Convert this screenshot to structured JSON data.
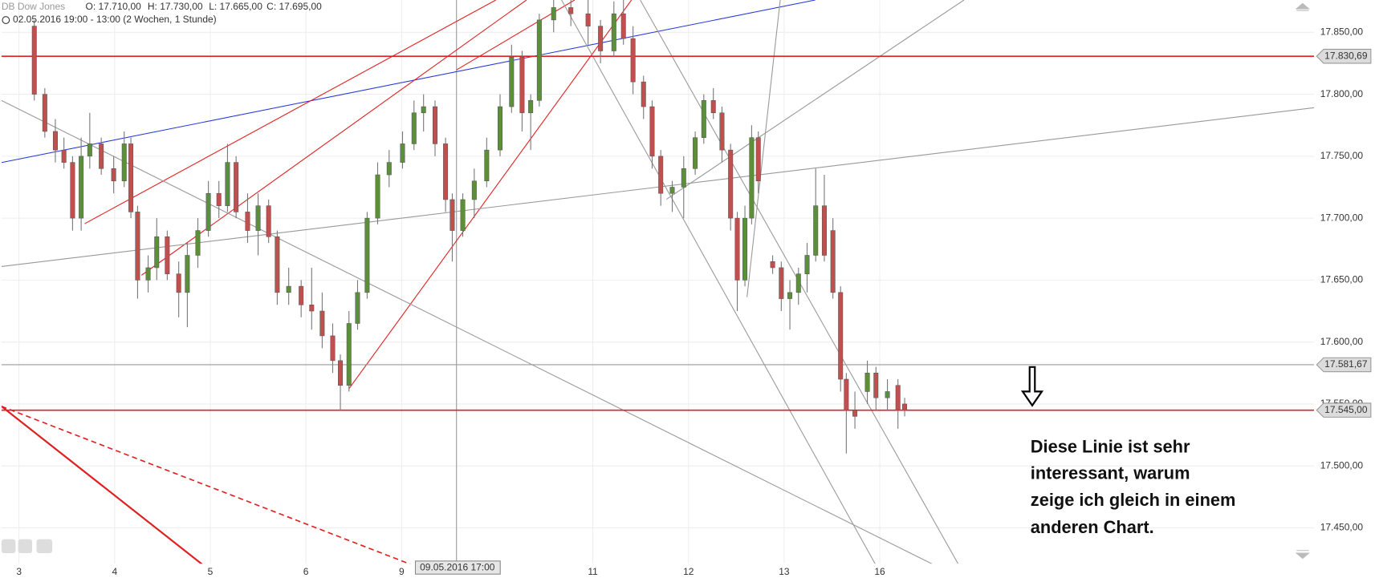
{
  "chart_data": {
    "type": "candlestick",
    "instrument": "DB Dow Jones",
    "ohlc_header": [
      "O: 17.710,00",
      "H: 17.730,00",
      "L: 17.665,00",
      "C: 17.695,00"
    ],
    "period": "02.05.2016 19:00 - 13:00 (2 Wochen, 1 Stunde)",
    "crosshair_label": "09.05.2016 17:00",
    "annotation": [
      "Diese Linie ist sehr",
      "interessant, warum",
      "zeige ich gleich in einem",
      "anderen Chart."
    ],
    "up_color": "#5b8f3a",
    "down_color": "#c0504d",
    "grid": true,
    "xlim": [
      -0.183,
      13.54
    ],
    "xticks": [
      {
        "value": 0,
        "label": "3"
      },
      {
        "value": 1,
        "label": "4"
      },
      {
        "value": 2,
        "label": "5"
      },
      {
        "value": 3,
        "label": "6"
      },
      {
        "value": 4,
        "label": "9"
      },
      {
        "value": 6,
        "label": "11"
      },
      {
        "value": 7,
        "label": "12"
      },
      {
        "value": 8,
        "label": "13"
      },
      {
        "value": 9,
        "label": "16"
      }
    ],
    "ylim": [
      17421.1,
      17876.1
    ],
    "yticks": [
      {
        "value": 17450,
        "label": "17.450,00"
      },
      {
        "value": 17500,
        "label": "17.500,00"
      },
      {
        "value": 17550,
        "label": "17.550,00"
      },
      {
        "value": 17600,
        "label": "17.600,00"
      },
      {
        "value": 17650,
        "label": "17.650,00"
      },
      {
        "value": 17700,
        "label": "17.700,00"
      },
      {
        "value": 17750,
        "label": "17.750,00"
      },
      {
        "value": 17800,
        "label": "17.800,00"
      },
      {
        "value": 17850,
        "label": "17.850,00"
      }
    ],
    "hlines": [
      {
        "value": 17830.69,
        "label": "17.830,69",
        "color": "#e02020"
      },
      {
        "value": 17581.67,
        "label": "17.581,67",
        "color": "#999999"
      },
      {
        "value": 17545,
        "label": "17.545,00",
        "color": "#e02020"
      }
    ],
    "x": [
      0.16,
      0.27,
      0.38,
      0.47,
      0.56,
      0.65,
      0.74,
      0.86,
      0.99,
      1.1,
      1.17,
      1.24,
      1.35,
      1.44,
      1.55,
      1.67,
      1.76,
      1.87,
      1.98,
      2.09,
      2.18,
      2.27,
      2.39,
      2.5,
      2.61,
      2.7,
      2.82,
      2.95,
      3.06,
      3.17,
      3.28,
      3.36,
      3.45,
      3.54,
      3.64,
      3.75,
      3.87,
      4.01,
      4.13,
      4.23,
      4.35,
      4.46,
      4.53,
      4.64,
      4.76,
      4.89,
      5.03,
      5.15,
      5.26,
      5.35,
      5.44,
      5.59,
      5.77,
      5.95,
      6.08,
      6.22,
      6.32,
      6.42,
      6.53,
      6.62,
      6.71,
      6.83,
      6.95,
      7.07,
      7.16,
      7.26,
      7.35,
      7.44,
      7.51,
      7.59,
      7.66,
      7.73,
      7.88,
      7.97,
      8.06,
      8.15,
      8.24,
      8.33,
      8.42,
      8.51,
      8.59,
      8.65,
      8.74,
      8.87,
      8.96,
      9.08,
      9.19,
      9.26
    ],
    "open": [
      17855,
      17800,
      17770,
      17755,
      17745,
      17700,
      17750,
      17760,
      17740,
      17730,
      17760,
      17705,
      17650,
      17660,
      17685,
      17655,
      17640,
      17670,
      17690,
      17720,
      17710,
      17745,
      17705,
      17690,
      17710,
      17685,
      17640,
      17645,
      17630,
      17625,
      17605,
      17585,
      17565,
      17615,
      17640,
      17700,
      17735,
      17745,
      17760,
      17785,
      17790,
      17760,
      17715,
      17690,
      17715,
      17730,
      17755,
      17790,
      17830,
      17785,
      17795,
      17860,
      17870,
      17865,
      17855,
      17835,
      17865,
      17845,
      17810,
      17790,
      17750,
      17720,
      17725,
      17740,
      17765,
      17795,
      17785,
      17755,
      17700,
      17650,
      17700,
      17765,
      17665,
      17660,
      17635,
      17640,
      17655,
      17670,
      17710,
      17690,
      17640,
      17570,
      17545,
      17560,
      17575,
      17555,
      17565,
      17550
    ],
    "high": [
      17860,
      17805,
      17780,
      17765,
      17750,
      17765,
      17785,
      17765,
      17750,
      17770,
      17765,
      17710,
      17670,
      17700,
      17690,
      17665,
      17680,
      17700,
      17730,
      17730,
      17760,
      17750,
      17720,
      17720,
      17715,
      17690,
      17660,
      17650,
      17660,
      17640,
      17615,
      17590,
      17625,
      17650,
      17705,
      17745,
      17755,
      17770,
      17795,
      17800,
      17795,
      17765,
      17720,
      17720,
      17740,
      17765,
      17800,
      17840,
      17835,
      17800,
      17865,
      17880,
      17880,
      17880,
      17860,
      17875,
      17880,
      17855,
      17815,
      17795,
      17755,
      17730,
      17750,
      17770,
      17800,
      17805,
      17790,
      17760,
      17705,
      17710,
      17775,
      17770,
      17670,
      17665,
      17650,
      17660,
      17680,
      17740,
      17735,
      17700,
      17645,
      17575,
      17560,
      17585,
      17580,
      17570,
      17570,
      17555
    ],
    "low": [
      17795,
      17765,
      17745,
      17740,
      17690,
      17690,
      17740,
      17735,
      17720,
      17725,
      17700,
      17635,
      17640,
      17650,
      17650,
      17620,
      17612,
      17660,
      17685,
      17700,
      17705,
      17700,
      17680,
      17670,
      17680,
      17630,
      17630,
      17620,
      17610,
      17595,
      17575,
      17545,
      17560,
      17610,
      17635,
      17695,
      17725,
      17740,
      17755,
      17770,
      17750,
      17705,
      17665,
      17685,
      17700,
      17725,
      17750,
      17785,
      17770,
      17755,
      17790,
      17850,
      17855,
      17840,
      17825,
      17830,
      17840,
      17800,
      17780,
      17740,
      17710,
      17705,
      17700,
      17735,
      17760,
      17780,
      17745,
      17690,
      17625,
      17645,
      17695,
      17720,
      17655,
      17625,
      17610,
      17630,
      17640,
      17665,
      17665,
      17635,
      17560,
      17510,
      17530,
      17550,
      17545,
      17545,
      17530,
      17540
    ],
    "close": [
      17800,
      17770,
      17755,
      17745,
      17700,
      17750,
      17760,
      17740,
      17730,
      17760,
      17705,
      17650,
      17660,
      17685,
      17655,
      17640,
      17670,
      17690,
      17720,
      17710,
      17745,
      17705,
      17690,
      17710,
      17685,
      17640,
      17645,
      17630,
      17625,
      17605,
      17585,
      17565,
      17615,
      17640,
      17700,
      17735,
      17745,
      17760,
      17785,
      17790,
      17760,
      17715,
      17690,
      17715,
      17730,
      17755,
      17790,
      17830,
      17785,
      17795,
      17860,
      17870,
      17865,
      17855,
      17835,
      17865,
      17845,
      17810,
      17790,
      17750,
      17720,
      17725,
      17740,
      17765,
      17795,
      17785,
      17755,
      17700,
      17650,
      17700,
      17765,
      17730,
      17660,
      17635,
      17640,
      17655,
      17670,
      17710,
      17670,
      17640,
      17570,
      17545,
      17540,
      17575,
      17555,
      17560,
      17545,
      17545
    ]
  }
}
